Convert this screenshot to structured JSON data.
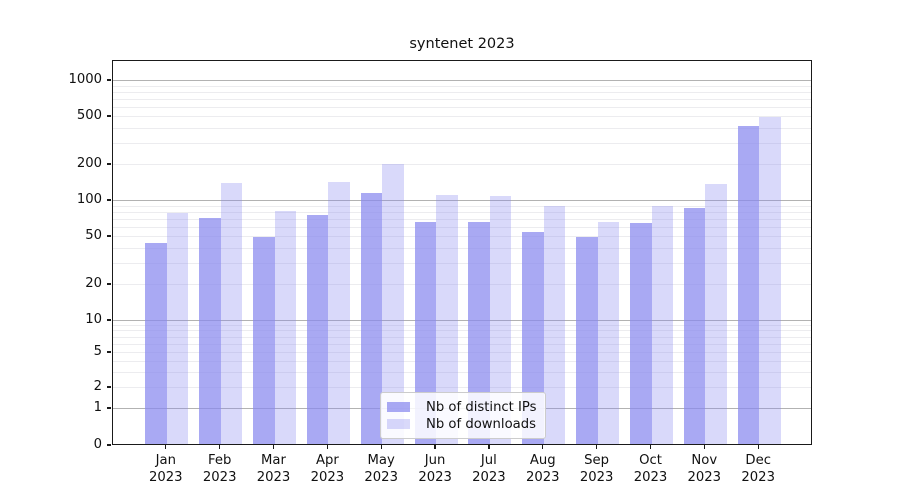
{
  "title": "syntenet 2023",
  "legend": {
    "items": [
      {
        "label": "Nb of distinct IPs",
        "series": "distinct_ips"
      },
      {
        "label": "Nb of downloads",
        "series": "downloads"
      }
    ]
  },
  "colors": {
    "distinct_ips": "rgba(136,136,238,0.72)",
    "downloads": "rgba(136,136,238,0.32)",
    "grid_major": "#b2b2b2",
    "grid_minor": "#ececef",
    "spine": "#1a1a1a",
    "background": "#ffffff"
  },
  "x_axis": {
    "categories": [
      {
        "month": "Jan",
        "year": "2023"
      },
      {
        "month": "Feb",
        "year": "2023"
      },
      {
        "month": "Mar",
        "year": "2023"
      },
      {
        "month": "Apr",
        "year": "2023"
      },
      {
        "month": "May",
        "year": "2023"
      },
      {
        "month": "Jun",
        "year": "2023"
      },
      {
        "month": "Jul",
        "year": "2023"
      },
      {
        "month": "Aug",
        "year": "2023"
      },
      {
        "month": "Sep",
        "year": "2023"
      },
      {
        "month": "Oct",
        "year": "2023"
      },
      {
        "month": "Nov",
        "year": "2023"
      },
      {
        "month": "Dec",
        "year": "2023"
      }
    ]
  },
  "y_axis": {
    "tick_labels": [
      0,
      1,
      2,
      5,
      10,
      20,
      50,
      100,
      200,
      500,
      1000
    ],
    "scale": "symlog"
  },
  "chart_data": {
    "type": "bar",
    "title": "syntenet 2023",
    "categories": [
      "Jan 2023",
      "Feb 2023",
      "Mar 2023",
      "Apr 2023",
      "May 2023",
      "Jun 2023",
      "Jul 2023",
      "Aug 2023",
      "Sep 2023",
      "Oct 2023",
      "Nov 2023",
      "Dec 2023"
    ],
    "series": [
      {
        "name": "Nb of distinct IPs",
        "values": [
          43,
          69,
          48,
          73,
          113,
          65,
          64,
          53,
          48,
          63,
          85,
          410
        ]
      },
      {
        "name": "Nb of downloads",
        "values": [
          77,
          136,
          80,
          139,
          196,
          109,
          106,
          87,
          64,
          87,
          134,
          480
        ]
      }
    ],
    "xlabel": "",
    "ylabel": "",
    "yscale": "symlog",
    "y_ticks": [
      0,
      1,
      2,
      5,
      10,
      20,
      50,
      100,
      200,
      500,
      1000
    ],
    "ylim": [
      0,
      1468
    ],
    "grid": "on",
    "legend_position": "lower center"
  }
}
